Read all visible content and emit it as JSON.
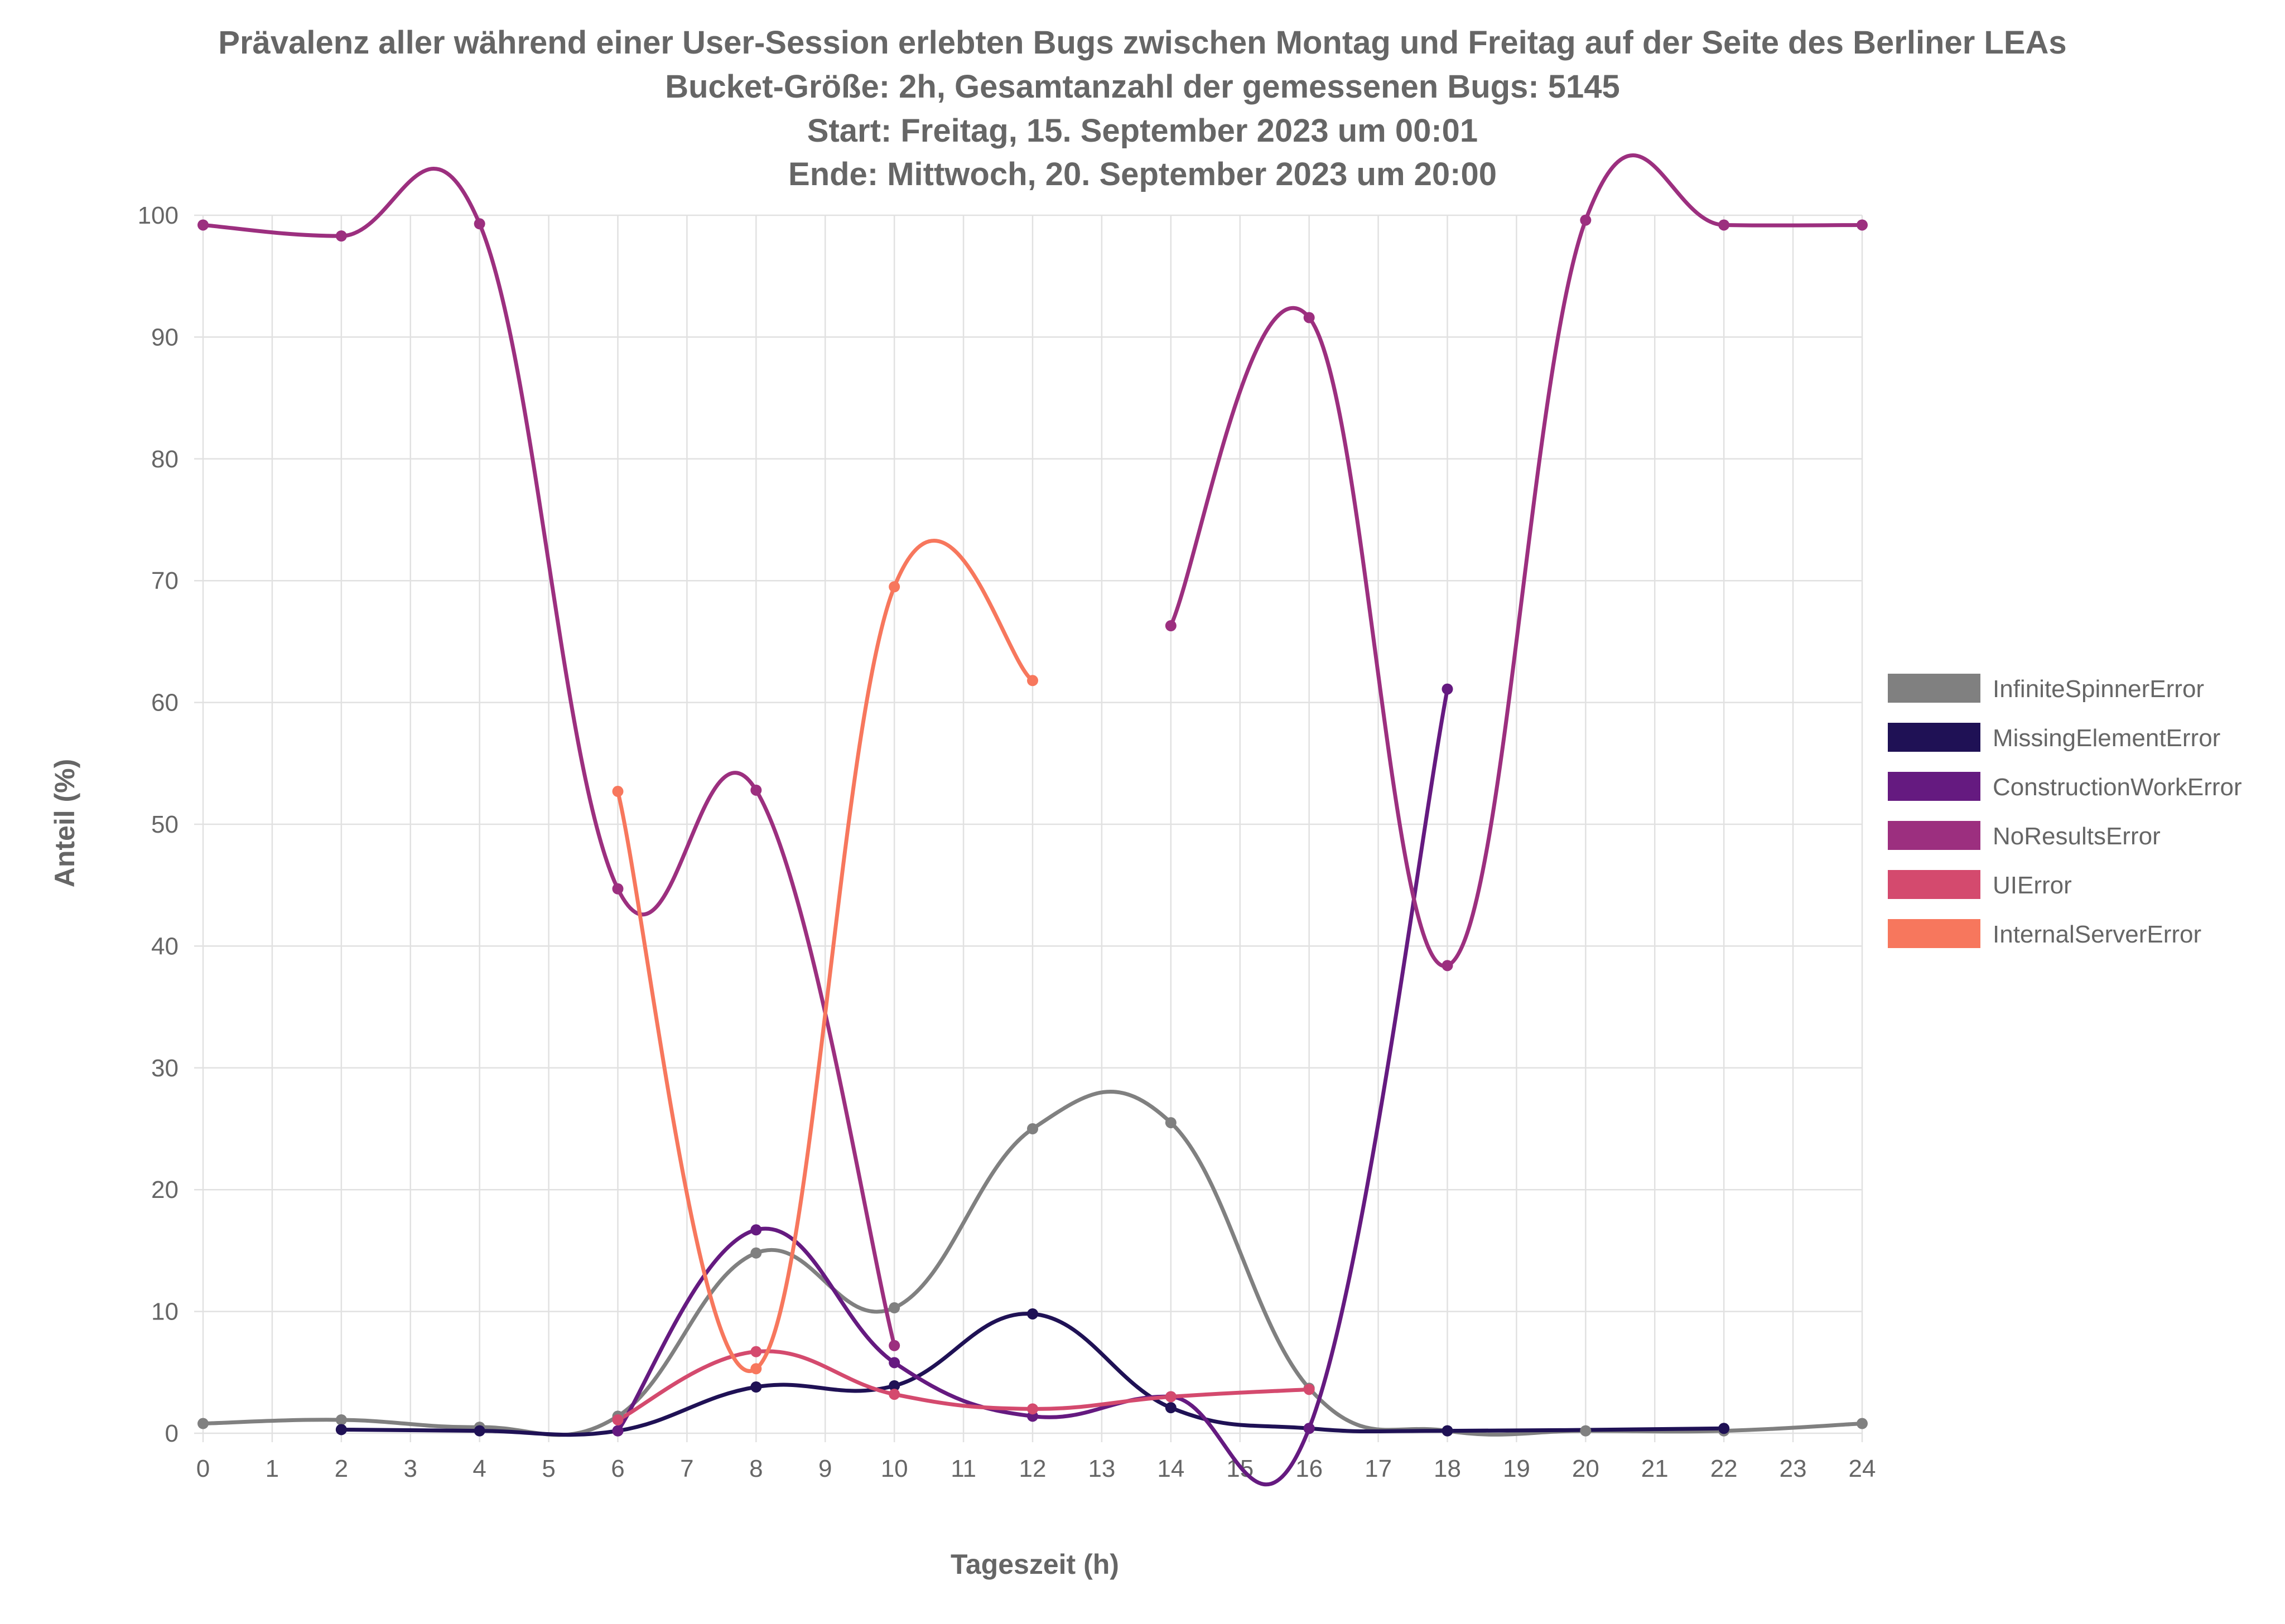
{
  "chart_data": {
    "type": "line",
    "title": [
      "Prävalenz aller während einer User-Session erlebten Bugs zwischen Montag und Freitag auf der Seite des Berliner LEAs",
      "Bucket-Größe: 2h, Gesamtanzahl der gemessenen Bugs: 5145",
      "Start: Freitag, 15. September 2023 um 00:01",
      "Ende: Mittwoch, 20. September 2023 um 20:00"
    ],
    "xlabel": "Tageszeit (h)",
    "ylabel": "Anteil (%)",
    "xlim": [
      0,
      24
    ],
    "ylim": [
      0,
      100
    ],
    "x_ticks": [
      "0",
      "1",
      "2",
      "3",
      "4",
      "5",
      "6",
      "7",
      "8",
      "9",
      "10",
      "11",
      "12",
      "13",
      "14",
      "15",
      "16",
      "17",
      "18",
      "19",
      "20",
      "21",
      "22",
      "23",
      "24"
    ],
    "y_ticks": [
      "0",
      "10",
      "20",
      "30",
      "40",
      "50",
      "60",
      "70",
      "80",
      "90",
      "100"
    ],
    "grid": true,
    "legend_position": "right",
    "series": [
      {
        "name": "InfiniteSpinnerError",
        "color": "#808080",
        "x": [
          0,
          2,
          4,
          6,
          8,
          10,
          12,
          14,
          16,
          18,
          20,
          22,
          24
        ],
        "y": [
          0.8,
          1.1,
          0.5,
          1.4,
          14.8,
          10.3,
          25.0,
          25.5,
          3.7,
          0.2,
          0.2,
          0.2,
          0.8
        ]
      },
      {
        "name": "MissingElementError",
        "color": "#1f1155",
        "x": [
          2,
          4,
          6,
          8,
          10,
          12,
          14,
          16,
          18,
          22
        ],
        "y": [
          0.3,
          0.2,
          0.2,
          3.8,
          3.9,
          9.8,
          2.1,
          0.4,
          0.2,
          0.4
        ]
      },
      {
        "name": "ConstructionWorkError",
        "color": "#651a80",
        "x": [
          6,
          8,
          10,
          12,
          14,
          16,
          18
        ],
        "y": [
          0.2,
          16.7,
          5.8,
          1.4,
          3.0,
          0.4,
          61.1
        ]
      },
      {
        "name": "NoResultsError",
        "color": "#9c2f7f",
        "x": [
          0,
          2,
          4,
          6,
          8,
          10
        ],
        "y": [
          99.2,
          98.3,
          99.3,
          44.7,
          52.8,
          7.2
        ],
        "x2": [
          14,
          16,
          18,
          20,
          22,
          24
        ],
        "y2": [
          66.3,
          91.6,
          38.4,
          99.6,
          99.2,
          99.2
        ]
      },
      {
        "name": "UIError",
        "color": "#d44a6e",
        "x": [
          6,
          8,
          10,
          12,
          14,
          16
        ],
        "y": [
          1.1,
          6.7,
          3.2,
          2.0,
          3.0,
          3.6
        ]
      },
      {
        "name": "InternalServerError",
        "color": "#f7775d",
        "x": [
          6,
          8,
          10,
          12
        ],
        "y": [
          52.7,
          5.3,
          69.5,
          61.8
        ]
      }
    ]
  }
}
